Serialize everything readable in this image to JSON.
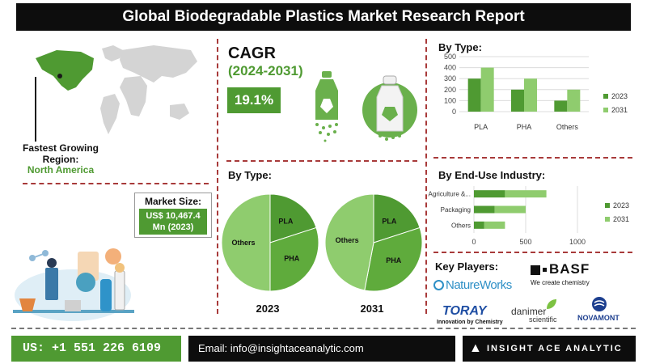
{
  "title": "Global Biodegradable Plastics Market Research Report",
  "region": {
    "label": "Fastest Growing Region:",
    "value": "North America"
  },
  "cagr": {
    "label": "CAGR",
    "period": "(2024-2031)",
    "value": "19.1%"
  },
  "market_size": {
    "label": "Market Size:",
    "value": "US$ 10,467.4 Mn (2023)"
  },
  "key_players": {
    "label": "Key Players:",
    "items": [
      "BASF",
      "We create chemistry",
      "NatureWorks",
      "TORAY",
      "Innovation by Chemistry",
      "danimer",
      "scientific",
      "NOVAMONT"
    ]
  },
  "footer": {
    "phone": "US: +1 551 226 6109",
    "email": "Email: info@insightaceanalytic.com",
    "brand": "INSIGHT ACE ANALYTIC"
  },
  "colors": {
    "dark_green": "#4f9a32",
    "light_green": "#8fcc6e",
    "pie_mid": "#5fab3c",
    "dash": "#a83a3a"
  },
  "chart_data": [
    {
      "type": "bar",
      "title": "By Type:",
      "categories": [
        "PLA",
        "PHA",
        "Others"
      ],
      "series": [
        {
          "name": "2023",
          "values": [
            300,
            200,
            100
          ]
        },
        {
          "name": "2031",
          "values": [
            400,
            300,
            200
          ]
        }
      ],
      "ylim": [
        0,
        500
      ],
      "yticks": [
        0,
        100,
        200,
        300,
        400,
        500
      ],
      "legend": "right",
      "grid": true
    },
    {
      "type": "bar",
      "orientation": "horizontal",
      "title": "By End-Use Industry:",
      "categories": [
        "Agriculture &...",
        "Packaging",
        "Others"
      ],
      "series": [
        {
          "name": "2023",
          "values": [
            300,
            200,
            100
          ]
        },
        {
          "name": "2031",
          "values": [
            400,
            300,
            200
          ]
        }
      ],
      "xlim": [
        0,
        1000
      ],
      "xticks": [
        0,
        500,
        1000
      ],
      "legend": "right",
      "grid": true
    },
    {
      "type": "pie",
      "title": "By Type:",
      "label": "2023",
      "slices": [
        {
          "name": "PLA",
          "value": 20
        },
        {
          "name": "PHA",
          "value": 30
        },
        {
          "name": "Others",
          "value": 50
        }
      ]
    },
    {
      "type": "pie",
      "label": "2031",
      "slices": [
        {
          "name": "PLA",
          "value": 20
        },
        {
          "name": "PHA",
          "value": 33
        },
        {
          "name": "Others",
          "value": 47
        }
      ]
    }
  ]
}
